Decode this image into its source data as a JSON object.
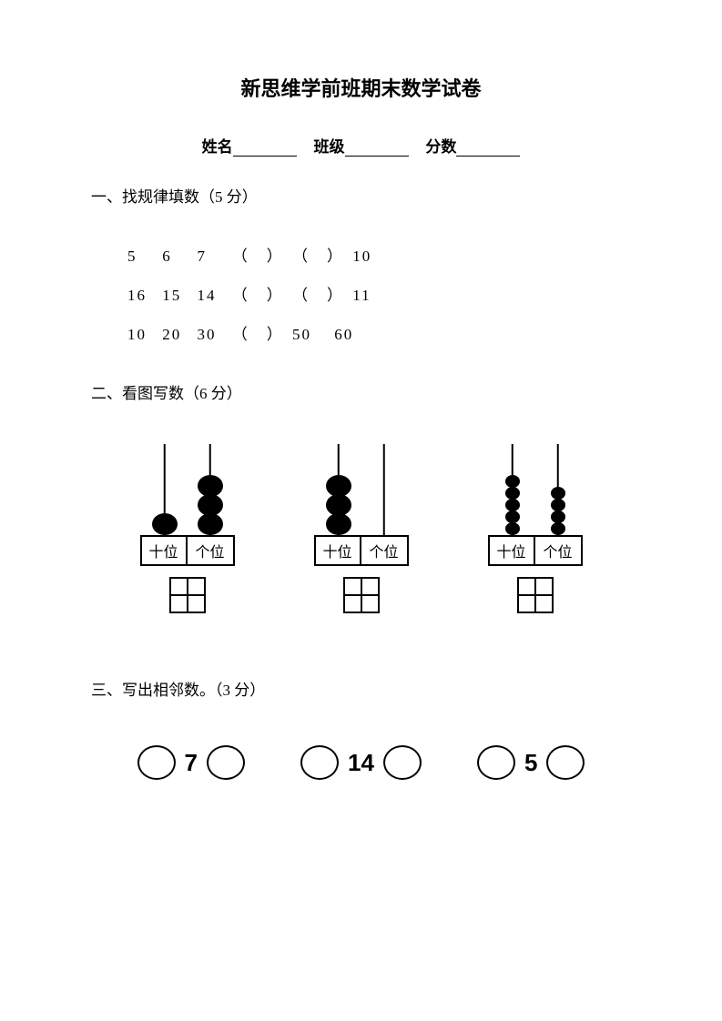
{
  "title": "新思维学前班期末数学试卷",
  "info": {
    "name_label": "姓名",
    "class_label": "班级",
    "score_label": "分数"
  },
  "section1": {
    "heading": "一、找规律填数（5 分）",
    "rows": [
      [
        "5",
        "6",
        "7",
        "（　）",
        "（　）",
        "10"
      ],
      [
        "16",
        "15",
        "14",
        "（　）",
        "（　）",
        "11"
      ],
      [
        "10",
        "20",
        "30",
        "（　）",
        "50",
        "60"
      ]
    ]
  },
  "section2": {
    "heading": "二、看图写数（6 分）",
    "place_tens": "十位",
    "place_ones": "个位",
    "abaci": [
      {
        "tens_beads": 1,
        "ones_beads": 3,
        "bead_style": "large"
      },
      {
        "tens_beads": 3,
        "ones_beads": 0,
        "bead_style": "large"
      },
      {
        "tens_beads": 5,
        "ones_beads": 4,
        "bead_style": "small"
      }
    ],
    "colors": {
      "bead": "#000000",
      "line": "#000000"
    }
  },
  "section3": {
    "heading": "三、写出相邻数。（3 分）",
    "numbers": [
      "7",
      "14",
      "5"
    ]
  }
}
